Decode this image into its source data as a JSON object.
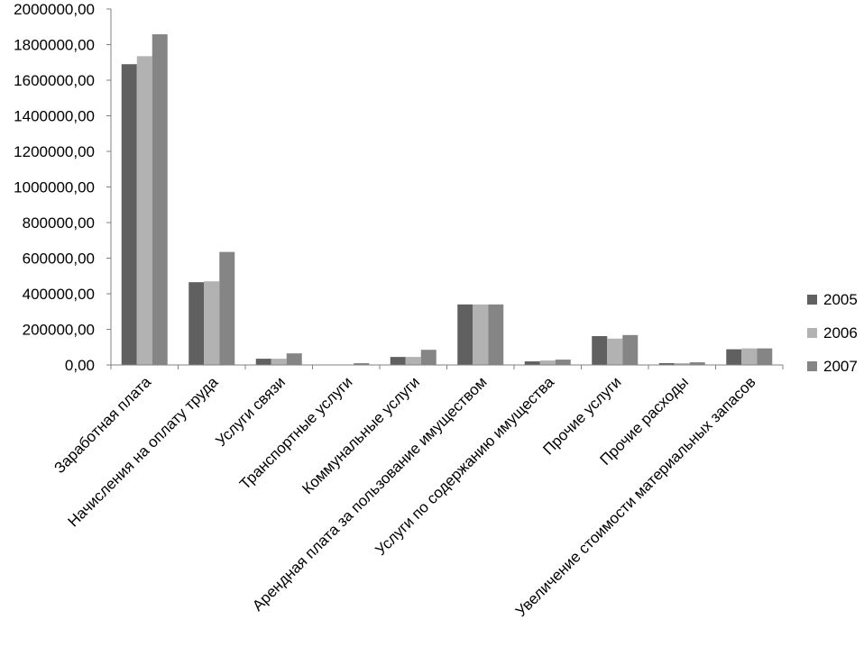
{
  "chart_data": {
    "type": "bar",
    "title": "",
    "xlabel": "",
    "ylabel": "",
    "ylim": [
      0,
      2000000
    ],
    "ytick_step": 200000,
    "ytick_labels": [
      "0,00",
      "200000,00",
      "400000,00",
      "600000,00",
      "800000,00",
      "1000000,00",
      "1200000,00",
      "1400000,00",
      "1600000,00",
      "1800000,00",
      "2000000,00"
    ],
    "grid": false,
    "legend_position": "right",
    "categories": [
      "Заработная плата",
      "Начисления на оплату труда",
      "Услуги связи",
      "Транспортные услуги",
      "Коммунальные услуги",
      "Арендная плата за пользование имуществом",
      "Услуги по содержанию имущества",
      "Прочие услуги",
      "Прочие расходы",
      "Увеличение стоимости материальных запасов"
    ],
    "series": [
      {
        "name": "2005",
        "color": "#606060",
        "values": [
          1690000,
          465000,
          35000,
          0,
          45000,
          340000,
          20000,
          162000,
          10000,
          88000
        ]
      },
      {
        "name": "2006",
        "color": "#b2b2b2",
        "values": [
          1735000,
          470000,
          35000,
          0,
          45000,
          340000,
          25000,
          148000,
          10000,
          93000
        ]
      },
      {
        "name": "2007",
        "color": "#858585",
        "values": [
          1858000,
          635000,
          65000,
          10000,
          85000,
          340000,
          30000,
          168000,
          15000,
          93000
        ]
      }
    ]
  }
}
